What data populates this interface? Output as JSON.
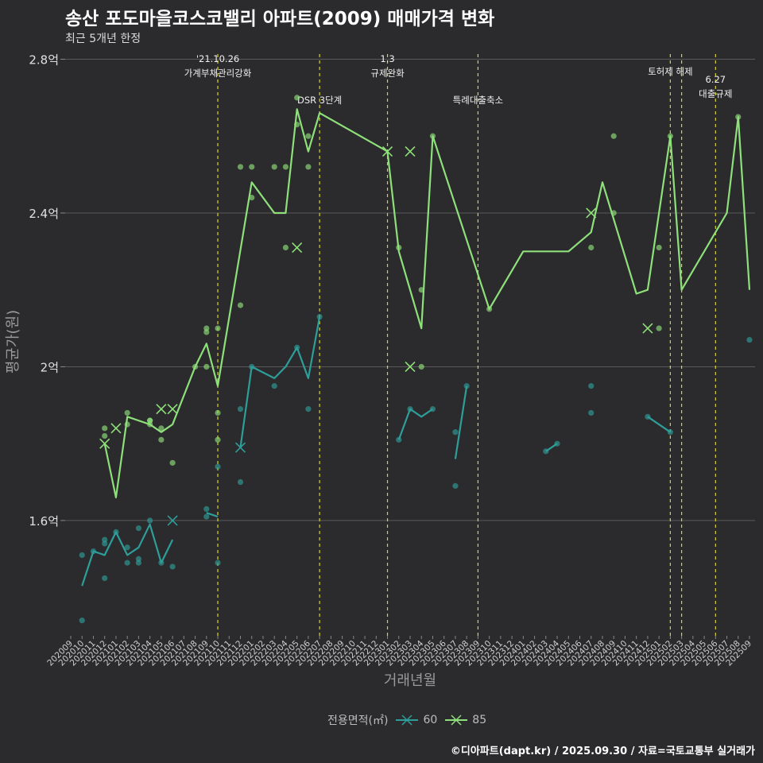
{
  "header": {
    "title": "송산 포도마을코스코밸리 아파트(2009) 매매가격 변화",
    "subtitle": "최근 5개년 한정"
  },
  "caption": "©디아파트(dapt.kr) / 2025.09.30 / 자료=국토교통부 실거래가",
  "legend": {
    "title": "전용면적(㎡)",
    "items": [
      {
        "label": "60",
        "color": "#2e9e9a"
      },
      {
        "label": "85",
        "color": "#8ee07a"
      }
    ]
  },
  "chart_data": {
    "type": "line",
    "title": "송산 포도마을코스코밸리 아파트(2009) 매매가격 변화",
    "subtitle": "최근 5개년 한정",
    "xlabel": "거래년월",
    "ylabel": "평균가(원)",
    "ylim": [
      1.3,
      2.83
    ],
    "yunit": "억",
    "yticks": [
      1.6,
      2.0,
      2.4,
      2.8
    ],
    "ytick_labels": [
      "1.6억",
      "2억",
      "2.4억",
      "2.8억"
    ],
    "categories": [
      "202009",
      "202010",
      "202011",
      "202012",
      "202101",
      "202102",
      "202103",
      "202104",
      "202105",
      "202106",
      "202107",
      "202108",
      "202109",
      "202110",
      "202111",
      "202112",
      "202201",
      "202202",
      "202203",
      "202204",
      "202205",
      "202206",
      "202207",
      "202208",
      "202209",
      "202210",
      "202211",
      "202212",
      "202301",
      "202302",
      "202303",
      "202304",
      "202305",
      "202306",
      "202307",
      "202308",
      "202309",
      "202310",
      "202311",
      "202312",
      "202401",
      "202402",
      "202403",
      "202404",
      "202405",
      "202406",
      "202407",
      "202408",
      "202409",
      "202410",
      "202411",
      "202412",
      "202501",
      "202502",
      "202503",
      "202504",
      "202505",
      "202506",
      "202507",
      "202508",
      "202509"
    ],
    "events": [
      {
        "x": "202110",
        "label": "'21.10.26\n가계부채관리강화",
        "level": 1
      },
      {
        "x": "202207",
        "label": "DSR 3단계",
        "level": 2
      },
      {
        "x": "202301",
        "label": "1.3\n규제완화",
        "level": 1
      },
      {
        "x": "202309",
        "label": "특례대출축소",
        "level": 2
      },
      {
        "x": "202502",
        "label": "토허제 해제",
        "level": 1
      },
      {
        "x": "202503",
        "label": "",
        "level": 1
      },
      {
        "x": "202506",
        "label": "6.27\n대출규제",
        "level": 3
      }
    ],
    "series": [
      {
        "name": "60",
        "color": "#2e9e9a",
        "segments": [
          [
            [
              "202010",
              1.43
            ],
            [
              "202011",
              1.52
            ],
            [
              "202012",
              1.51
            ],
            [
              "202101",
              1.57
            ],
            [
              "202102",
              1.51
            ],
            [
              "202103",
              1.53
            ],
            [
              "202104",
              1.59
            ],
            [
              "202105",
              1.49
            ],
            [
              "202106",
              1.55
            ]
          ],
          [
            [
              "202109",
              1.62
            ],
            [
              "202110",
              1.61
            ]
          ],
          [
            [
              "202112",
              1.79
            ],
            [
              "202201",
              2.0
            ],
            [
              "202203",
              1.97
            ],
            [
              "202204",
              2.0
            ],
            [
              "202205",
              2.05
            ],
            [
              "202206",
              1.97
            ],
            [
              "202207",
              2.13
            ]
          ],
          [
            [
              "202302",
              1.81
            ],
            [
              "202303",
              1.89
            ],
            [
              "202304",
              1.87
            ],
            [
              "202305",
              1.89
            ]
          ],
          [
            [
              "202307",
              1.76
            ],
            [
              "202308",
              1.95
            ]
          ],
          [
            [
              "202403",
              1.78
            ],
            [
              "202404",
              1.8
            ]
          ],
          [
            [
              "202412",
              1.87
            ],
            [
              "202502",
              1.83
            ]
          ]
        ],
        "points": [
          [
            "202010",
            1.51
          ],
          [
            "202010",
            1.34
          ],
          [
            "202011",
            1.52
          ],
          [
            "202012",
            1.55
          ],
          [
            "202012",
            1.54
          ],
          [
            "202012",
            1.45
          ],
          [
            "202101",
            1.57
          ],
          [
            "202102",
            1.53
          ],
          [
            "202102",
            1.49
          ],
          [
            "202103",
            1.58
          ],
          [
            "202103",
            1.5
          ],
          [
            "202103",
            1.49
          ],
          [
            "202104",
            1.6
          ],
          [
            "202105",
            1.49
          ],
          [
            "202106",
            1.48
          ],
          [
            "202109",
            1.61
          ],
          [
            "202109",
            1.63
          ],
          [
            "202110",
            1.74
          ],
          [
            "202110",
            1.49
          ],
          [
            "202112",
            1.7
          ],
          [
            "202112",
            1.89
          ],
          [
            "202201",
            2.0
          ],
          [
            "202203",
            1.95
          ],
          [
            "202205",
            2.05
          ],
          [
            "202206",
            1.89
          ],
          [
            "202207",
            2.13
          ],
          [
            "202302",
            1.81
          ],
          [
            "202303",
            1.89
          ],
          [
            "202305",
            1.89
          ],
          [
            "202307",
            1.83
          ],
          [
            "202307",
            1.69
          ],
          [
            "202308",
            1.95
          ],
          [
            "202403",
            1.78
          ],
          [
            "202404",
            1.8
          ],
          [
            "202407",
            1.95
          ],
          [
            "202407",
            1.88
          ],
          [
            "202412",
            1.87
          ],
          [
            "202502",
            1.83
          ],
          [
            "202509",
            2.07
          ]
        ],
        "crosses": [
          [
            "202106",
            1.6
          ],
          [
            "202112",
            1.79
          ]
        ]
      },
      {
        "name": "85",
        "color": "#8ee07a",
        "segments": [
          [
            [
              "202012",
              1.8
            ],
            [
              "202101",
              1.66
            ],
            [
              "202102",
              1.87
            ],
            [
              "202104",
              1.85
            ],
            [
              "202105",
              1.83
            ],
            [
              "202106",
              1.85
            ],
            [
              "202108",
              2.0
            ],
            [
              "202109",
              2.06
            ],
            [
              "202110",
              1.95
            ],
            [
              "202201",
              2.48
            ],
            [
              "202203",
              2.4
            ],
            [
              "202204",
              2.4
            ],
            [
              "202205",
              2.67
            ],
            [
              "202206",
              2.56
            ],
            [
              "202207",
              2.66
            ],
            [
              "202301",
              2.56
            ],
            [
              "202302",
              2.3
            ],
            [
              "202304",
              2.1
            ],
            [
              "202305",
              2.6
            ],
            [
              "202310",
              2.15
            ],
            [
              "202401",
              2.3
            ],
            [
              "202405",
              2.3
            ],
            [
              "202407",
              2.35
            ],
            [
              "202408",
              2.48
            ],
            [
              "202411",
              2.19
            ],
            [
              "202412",
              2.2
            ],
            [
              "202502",
              2.6
            ],
            [
              "202503",
              2.2
            ],
            [
              "202507",
              2.4
            ],
            [
              "202508",
              2.65
            ],
            [
              "202509",
              2.2
            ]
          ]
        ],
        "points": [
          [
            "202012",
            1.82
          ],
          [
            "202012",
            1.84
          ],
          [
            "202102",
            1.88
          ],
          [
            "202102",
            1.85
          ],
          [
            "202104",
            1.86
          ],
          [
            "202104",
            1.86
          ],
          [
            "202104",
            1.85
          ],
          [
            "202105",
            1.84
          ],
          [
            "202105",
            1.81
          ],
          [
            "202106",
            1.75
          ],
          [
            "202108",
            2.0
          ],
          [
            "202109",
            2.1
          ],
          [
            "202109",
            2.09
          ],
          [
            "202109",
            2.0
          ],
          [
            "202110",
            2.1
          ],
          [
            "202110",
            1.88
          ],
          [
            "202110",
            1.81
          ],
          [
            "202112",
            2.16
          ],
          [
            "202112",
            2.52
          ],
          [
            "202201",
            2.52
          ],
          [
            "202201",
            2.44
          ],
          [
            "202203",
            2.52
          ],
          [
            "202204",
            2.31
          ],
          [
            "202204",
            2.52
          ],
          [
            "202205",
            2.7
          ],
          [
            "202205",
            2.63
          ],
          [
            "202206",
            2.6
          ],
          [
            "202206",
            2.52
          ],
          [
            "202302",
            2.31
          ],
          [
            "202304",
            2.2
          ],
          [
            "202304",
            2.0
          ],
          [
            "202305",
            2.6
          ],
          [
            "202310",
            2.15
          ],
          [
            "202407",
            2.31
          ],
          [
            "202409",
            2.6
          ],
          [
            "202409",
            2.4
          ],
          [
            "202501",
            2.31
          ],
          [
            "202501",
            2.1
          ],
          [
            "202502",
            2.6
          ],
          [
            "202508",
            2.65
          ]
        ],
        "crosses": [
          [
            "202012",
            1.8
          ],
          [
            "202101",
            1.84
          ],
          [
            "202105",
            1.89
          ],
          [
            "202106",
            1.89
          ],
          [
            "202205",
            2.31
          ],
          [
            "202301",
            2.56
          ],
          [
            "202303",
            2.56
          ],
          [
            "202303",
            2.0
          ],
          [
            "202407",
            2.4
          ],
          [
            "202412",
            2.1
          ]
        ]
      }
    ]
  }
}
